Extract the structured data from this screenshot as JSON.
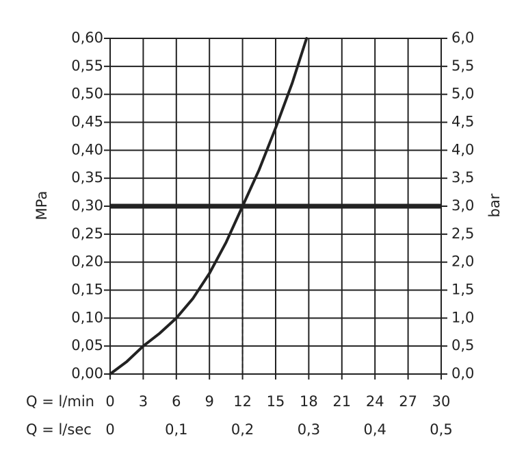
{
  "chart_data": {
    "type": "line",
    "xlabel": "Q = l/min",
    "x2label": "Q = l/sec",
    "ylabel": "MPa",
    "y2label": "bar",
    "x": [
      0,
      1.5,
      3,
      4.5,
      6,
      7.5,
      9,
      10.5,
      12,
      13.5,
      15,
      16.5,
      17.8
    ],
    "values": [
      0,
      0.022,
      0.05,
      0.073,
      0.1,
      0.135,
      0.18,
      0.235,
      0.3,
      0.365,
      0.44,
      0.52,
      0.6
    ],
    "color": "#222222",
    "reference_line": {
      "y": 0.3,
      "x": 12
    },
    "xlim": [
      0,
      30
    ],
    "xticks": [
      0,
      3,
      6,
      9,
      12,
      15,
      18,
      21,
      24,
      27,
      30
    ],
    "x2lim": [
      0,
      0.5
    ],
    "x2ticks": [
      0,
      {
        "value": 0.1,
        "label": "0,1"
      },
      {
        "value": 0.2,
        "label": "0,2"
      },
      {
        "value": 0.3,
        "label": "0,3"
      },
      {
        "value": 0.4,
        "label": "0,4"
      },
      {
        "value": 0.5,
        "label": "0,5"
      }
    ],
    "ylim": [
      0,
      0.6
    ],
    "yticks": [
      {
        "value": 0,
        "label": "0,00"
      },
      {
        "value": 0.05,
        "label": "0,05"
      },
      {
        "value": 0.1,
        "label": "0,10"
      },
      {
        "value": 0.15,
        "label": "0,15"
      },
      {
        "value": 0.2,
        "label": "0,20"
      },
      {
        "value": 0.25,
        "label": "0,25"
      },
      {
        "value": 0.3,
        "label": "0,30"
      },
      {
        "value": 0.35,
        "label": "0,35"
      },
      {
        "value": 0.4,
        "label": "0,40"
      },
      {
        "value": 0.45,
        "label": "0,45"
      },
      {
        "value": 0.5,
        "label": "0,50"
      },
      {
        "value": 0.55,
        "label": "0,55"
      },
      {
        "value": 0.6,
        "label": "0,60"
      }
    ],
    "y2lim": [
      0,
      6
    ],
    "y2ticks": [
      {
        "value": 0,
        "label": "0,0"
      },
      {
        "value": 0.5,
        "label": "0,5"
      },
      {
        "value": 1,
        "label": "1,0"
      },
      {
        "value": 1.5,
        "label": "1,5"
      },
      {
        "value": 2,
        "label": "2,0"
      },
      {
        "value": 2.5,
        "label": "2,5"
      },
      {
        "value": 3,
        "label": "3,0"
      },
      {
        "value": 3.5,
        "label": "3,5"
      },
      {
        "value": 4,
        "label": "4,0"
      },
      {
        "value": 4.5,
        "label": "4,5"
      },
      {
        "value": 5,
        "label": "5,0"
      },
      {
        "value": 5.5,
        "label": "5,5"
      },
      {
        "value": 6,
        "label": "6,0"
      }
    ],
    "grid": true
  }
}
